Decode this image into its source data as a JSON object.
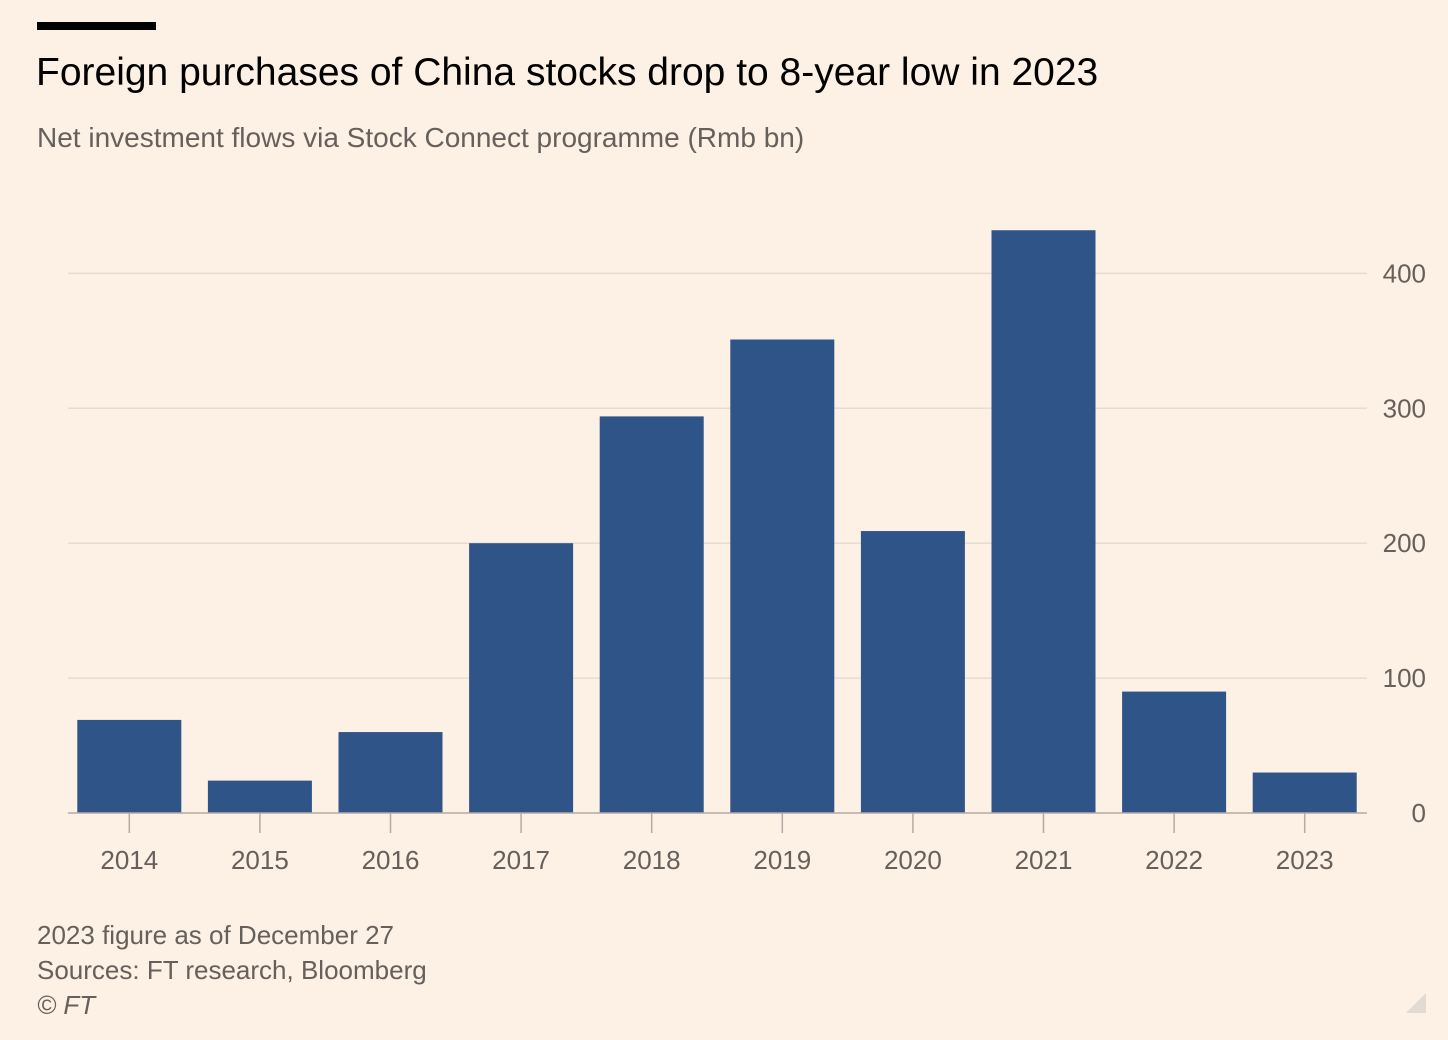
{
  "header": {
    "title": "Foreign purchases of China stocks drop to 8-year low in 2023",
    "subtitle": "Net investment flows via Stock Connect programme (Rmb bn)"
  },
  "footer": {
    "note": "2023 figure as of December 27",
    "sources": "Sources: FT research, Bloomberg",
    "credit": "© FT"
  },
  "colors": {
    "background": "#fdf0e4",
    "bar": "#2f5487",
    "gridline": "#e6dcd3",
    "axis": "#b3aba4",
    "text_muted": "#66605c"
  },
  "chart_data": {
    "type": "bar",
    "categories": [
      "2014",
      "2015",
      "2016",
      "2017",
      "2018",
      "2019",
      "2020",
      "2021",
      "2022",
      "2023"
    ],
    "values": [
      69,
      24,
      60,
      200,
      294,
      351,
      209,
      432,
      90,
      30
    ],
    "title": "Foreign purchases of China stocks drop to 8-year low in 2023",
    "subtitle": "Net investment flows via Stock Connect programme (Rmb bn)",
    "xlabel": "",
    "ylabel": "",
    "ylim": [
      0,
      440
    ],
    "yticks": [
      0,
      100,
      200,
      300,
      400
    ],
    "y_axis_side": "right",
    "grid": true,
    "legend": "none"
  }
}
